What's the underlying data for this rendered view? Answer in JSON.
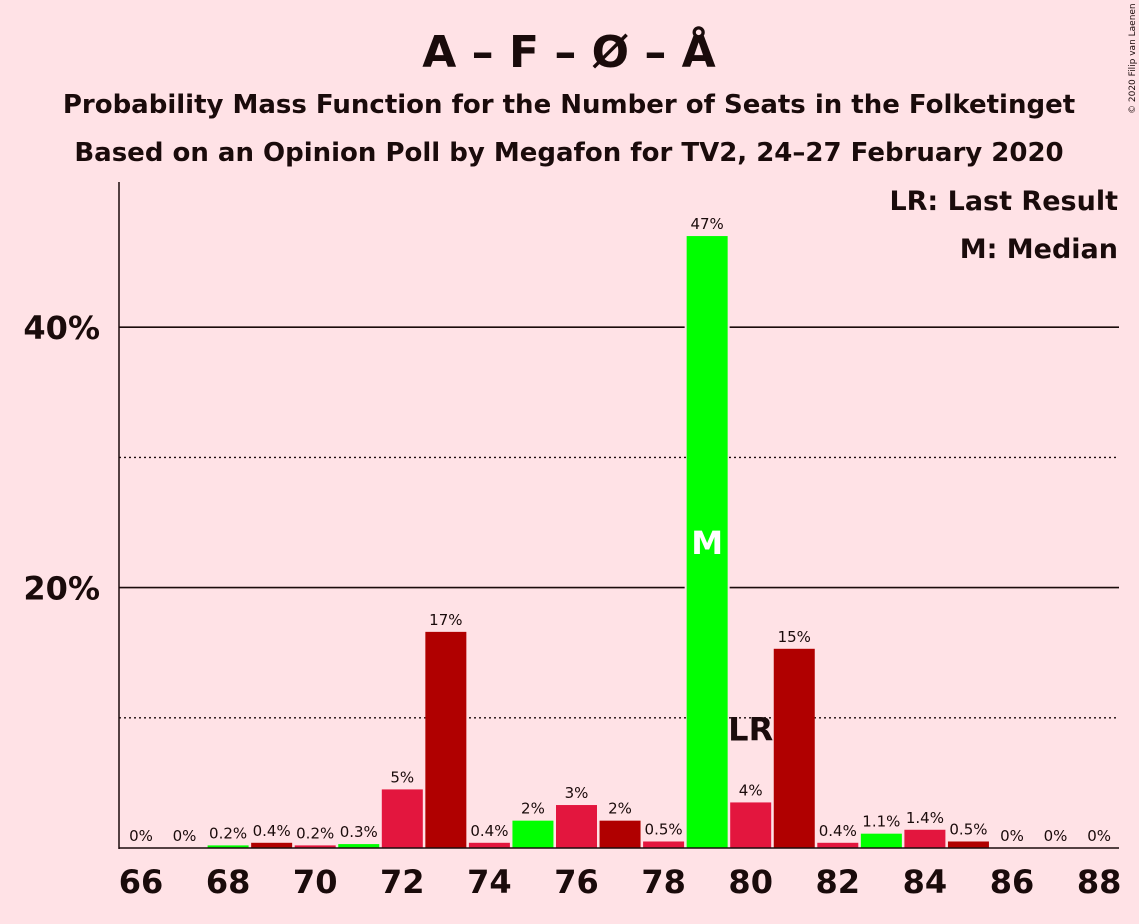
{
  "chart_data": {
    "type": "bar",
    "title": "A – F – Ø – Å",
    "subtitle_lines": [
      "Probability Mass Function for the Number of Seats in the Folketinget",
      "Based on an Opinion Poll by Megafon for TV2, 24–27 February 2020"
    ],
    "copyright": "© 2020 Filip van Laenen",
    "legend": [
      "LR: Last Result",
      "M: Median"
    ],
    "x_ticks": [
      66,
      68,
      70,
      72,
      74,
      76,
      78,
      80,
      82,
      84,
      86,
      88
    ],
    "y_ticks": [
      {
        "value": 20,
        "label": "20%"
      },
      {
        "value": 40,
        "label": "40%"
      }
    ],
    "ylim": [
      0,
      51
    ],
    "gridlines_dotted": [
      10,
      30
    ],
    "gridlines_solid": [
      20,
      40
    ],
    "median_seat": 79,
    "median_mark": "M",
    "last_result_seat": 80,
    "last_result_mark": "LR",
    "colors": {
      "background": "#FFE2E6",
      "median": "#00FF00",
      "crimson": "#E3163E",
      "darkred": "#B00000",
      "text": "#1a0b0b"
    },
    "bars": [
      {
        "seats": 66,
        "value": 0,
        "label": "0%",
        "color": "#E3163E"
      },
      {
        "seats": 67,
        "value": 0,
        "label": "0%",
        "color": "#B00000"
      },
      {
        "seats": 68,
        "value": 0.2,
        "label": "0.2%",
        "color": "#00FF00"
      },
      {
        "seats": 69,
        "value": 0.4,
        "label": "0.4%",
        "color": "#B00000"
      },
      {
        "seats": 70,
        "value": 0.2,
        "label": "0.2%",
        "color": "#E3163E"
      },
      {
        "seats": 71,
        "value": 0.3,
        "label": "0.3%",
        "color": "#00FF00"
      },
      {
        "seats": 72,
        "value": 4.5,
        "label": "5%",
        "color": "#E3163E"
      },
      {
        "seats": 73,
        "value": 16.6,
        "label": "17%",
        "color": "#B00000"
      },
      {
        "seats": 74,
        "value": 0.4,
        "label": "0.4%",
        "color": "#E3163E"
      },
      {
        "seats": 75,
        "value": 2.1,
        "label": "2%",
        "color": "#00FF00"
      },
      {
        "seats": 76,
        "value": 3.3,
        "label": "3%",
        "color": "#E3163E"
      },
      {
        "seats": 77,
        "value": 2.1,
        "label": "2%",
        "color": "#B00000"
      },
      {
        "seats": 78,
        "value": 0.5,
        "label": "0.5%",
        "color": "#E3163E"
      },
      {
        "seats": 79,
        "value": 47,
        "label": "47%",
        "color": "#00FF00"
      },
      {
        "seats": 80,
        "value": 3.5,
        "label": "4%",
        "color": "#E3163E"
      },
      {
        "seats": 81,
        "value": 15.3,
        "label": "15%",
        "color": "#B00000"
      },
      {
        "seats": 82,
        "value": 0.4,
        "label": "0.4%",
        "color": "#E3163E"
      },
      {
        "seats": 83,
        "value": 1.1,
        "label": "1.1%",
        "color": "#00FF00"
      },
      {
        "seats": 84,
        "value": 1.4,
        "label": "1.4%",
        "color": "#E3163E"
      },
      {
        "seats": 85,
        "value": 0.5,
        "label": "0.5%",
        "color": "#B00000"
      },
      {
        "seats": 86,
        "value": 0,
        "label": "0%",
        "color": "#E3163E"
      },
      {
        "seats": 87,
        "value": 0,
        "label": "0%",
        "color": "#B00000"
      },
      {
        "seats": 88,
        "value": 0,
        "label": "0%",
        "color": "#E3163E"
      }
    ]
  }
}
